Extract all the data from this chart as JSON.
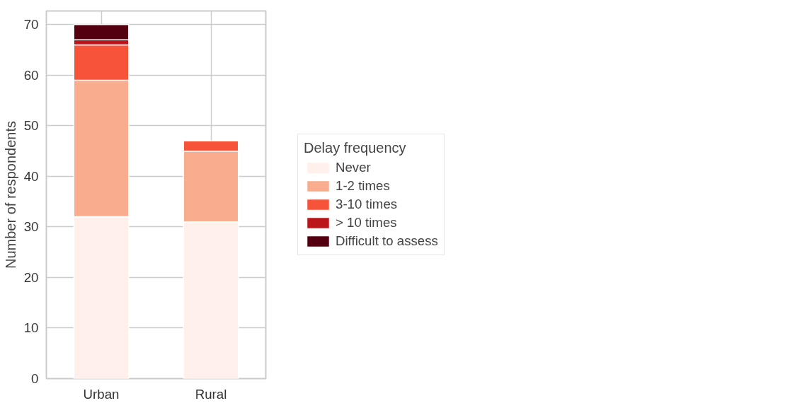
{
  "chart_data": {
    "type": "bar",
    "stacked": true,
    "ylabel": "Number of respondents",
    "legend_title": "Delay frequency",
    "categories": [
      "Urban",
      "Rural"
    ],
    "series": [
      {
        "name": "Never",
        "color": "#fff0eb",
        "values": [
          32,
          31
        ]
      },
      {
        "name": "1-2 times",
        "color": "#f9ac8e",
        "values": [
          27,
          14
        ]
      },
      {
        "name": "3-10 times",
        "color": "#f75339",
        "values": [
          7,
          2
        ]
      },
      {
        "name": "> 10 times",
        "color": "#bb1419",
        "values": [
          1,
          0
        ]
      },
      {
        "name": "Difficult to assess",
        "color": "#550010",
        "values": [
          3,
          0
        ]
      }
    ],
    "ylim": [
      0,
      72.7
    ],
    "yticks": [
      0,
      10,
      20,
      30,
      40,
      50,
      60,
      70
    ],
    "grid": true,
    "legend": "right"
  }
}
